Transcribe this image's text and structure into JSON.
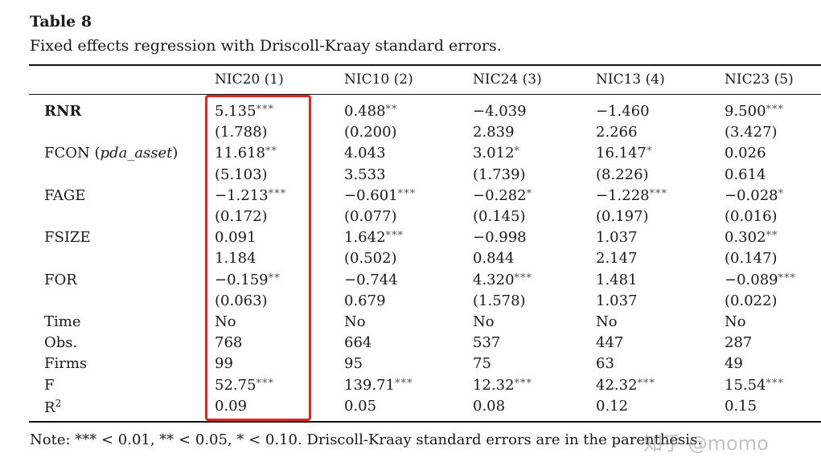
{
  "title": "Table 8",
  "subtitle": "Fixed effects regression with Driscoll-Kraay standard errors.",
  "columns": [
    "NIC20 (1)",
    "NIC10 (2)",
    "NIC24 (3)",
    "NIC13 (4)",
    "NIC23 (5)"
  ],
  "rows": [
    {
      "label": "RNR",
      "bold": true,
      "cells": [
        {
          "v": "5.135",
          "s": "***"
        },
        {
          "v": "0.488",
          "s": "**"
        },
        {
          "v": "−4.039",
          "s": ""
        },
        {
          "v": "−1.460",
          "s": ""
        },
        {
          "v": "9.500",
          "s": "***"
        }
      ]
    },
    {
      "label": "",
      "cells": [
        {
          "v": "(1.788)",
          "s": ""
        },
        {
          "v": "(0.200)",
          "s": ""
        },
        {
          "v": "2.839",
          "s": ""
        },
        {
          "v": "2.266",
          "s": ""
        },
        {
          "v": "(3.427)",
          "s": ""
        }
      ]
    },
    {
      "label": "FCON",
      "label_italic": "pda_asset",
      "cells": [
        {
          "v": "11.618",
          "s": "**"
        },
        {
          "v": "4.043",
          "s": ""
        },
        {
          "v": "3.012",
          "s": "*"
        },
        {
          "v": "16.147",
          "s": "*"
        },
        {
          "v": "0.026",
          "s": ""
        }
      ]
    },
    {
      "label": "",
      "cells": [
        {
          "v": "(5.103)",
          "s": ""
        },
        {
          "v": "3.533",
          "s": ""
        },
        {
          "v": "(1.739)",
          "s": ""
        },
        {
          "v": "(8.226)",
          "s": ""
        },
        {
          "v": "0.614",
          "s": ""
        }
      ]
    },
    {
      "label": "FAGE",
      "cells": [
        {
          "v": "−1.213",
          "s": "***"
        },
        {
          "v": "−0.601",
          "s": "***"
        },
        {
          "v": "−0.282",
          "s": "*"
        },
        {
          "v": "−1.228",
          "s": "***"
        },
        {
          "v": "−0.028",
          "s": "*"
        }
      ]
    },
    {
      "label": "",
      "cells": [
        {
          "v": "(0.172)",
          "s": ""
        },
        {
          "v": "(0.077)",
          "s": ""
        },
        {
          "v": "(0.145)",
          "s": ""
        },
        {
          "v": "(0.197)",
          "s": ""
        },
        {
          "v": "(0.016)",
          "s": ""
        }
      ]
    },
    {
      "label": "FSIZE",
      "cells": [
        {
          "v": "0.091",
          "s": ""
        },
        {
          "v": "1.642",
          "s": "***"
        },
        {
          "v": "−0.998",
          "s": ""
        },
        {
          "v": "1.037",
          "s": ""
        },
        {
          "v": "0.302",
          "s": "**"
        }
      ]
    },
    {
      "label": "",
      "cells": [
        {
          "v": "1.184",
          "s": ""
        },
        {
          "v": "(0.502)",
          "s": ""
        },
        {
          "v": "0.844",
          "s": ""
        },
        {
          "v": "2.147",
          "s": ""
        },
        {
          "v": "(0.147)",
          "s": ""
        }
      ]
    },
    {
      "label": "FOR",
      "cells": [
        {
          "v": "−0.159",
          "s": "**"
        },
        {
          "v": "−0.744",
          "s": ""
        },
        {
          "v": "4.320",
          "s": "***"
        },
        {
          "v": "1.481",
          "s": ""
        },
        {
          "v": "−0.089",
          "s": "***"
        }
      ]
    },
    {
      "label": "",
      "cells": [
        {
          "v": "(0.063)",
          "s": ""
        },
        {
          "v": "0.679",
          "s": ""
        },
        {
          "v": "(1.578)",
          "s": ""
        },
        {
          "v": "1.037",
          "s": ""
        },
        {
          "v": "(0.022)",
          "s": ""
        }
      ]
    },
    {
      "label": "Time",
      "cells": [
        {
          "v": "No",
          "s": ""
        },
        {
          "v": "No",
          "s": ""
        },
        {
          "v": "No",
          "s": ""
        },
        {
          "v": "No",
          "s": ""
        },
        {
          "v": "No",
          "s": ""
        }
      ]
    },
    {
      "label": "Obs.",
      "cells": [
        {
          "v": "768",
          "s": ""
        },
        {
          "v": "664",
          "s": ""
        },
        {
          "v": "537",
          "s": ""
        },
        {
          "v": "447",
          "s": ""
        },
        {
          "v": "287",
          "s": ""
        }
      ]
    },
    {
      "label": "Firms",
      "cells": [
        {
          "v": "99",
          "s": ""
        },
        {
          "v": "95",
          "s": ""
        },
        {
          "v": "75",
          "s": ""
        },
        {
          "v": "63",
          "s": ""
        },
        {
          "v": "49",
          "s": ""
        }
      ]
    },
    {
      "label": "F",
      "cells": [
        {
          "v": "52.75",
          "s": "***"
        },
        {
          "v": "139.71",
          "s": "***"
        },
        {
          "v": "12.32",
          "s": "***"
        },
        {
          "v": "42.32",
          "s": "***"
        },
        {
          "v": "15.54",
          "s": "***"
        }
      ]
    },
    {
      "label": "R",
      "label_sup": "2",
      "cells": [
        {
          "v": "0.09",
          "s": ""
        },
        {
          "v": "0.05",
          "s": ""
        },
        {
          "v": "0.08",
          "s": ""
        },
        {
          "v": "0.12",
          "s": ""
        },
        {
          "v": "0.15",
          "s": ""
        }
      ]
    }
  ],
  "note": "Note: *** < 0.01, ** < 0.05, * < 0.10. Driscoll-Kraay standard errors are in the parenthesis.",
  "highlight_color": "#e8231b",
  "watermark": "知乎 @momo"
}
